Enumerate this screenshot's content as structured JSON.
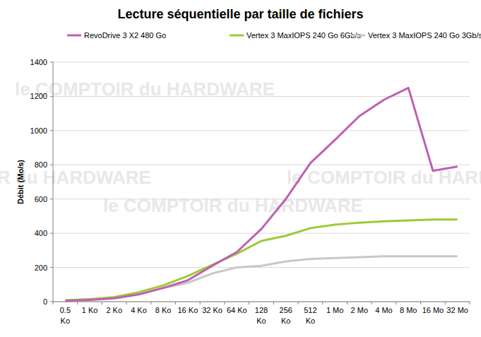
{
  "chart_data": {
    "type": "line",
    "title": "Lecture séquentielle par taille de fichiers",
    "y_label": "Débit (Mo/s)",
    "annotations": [
      "le COMPTOIR du HARDWARE"
    ],
    "categories": [
      "0.5 Ko",
      "1 Ko",
      "2 Ko",
      "4 Ko",
      "8 Ko",
      "16 Ko",
      "32 Ko",
      "64 Ko",
      "128 Ko",
      "256 Ko",
      "512 Ko",
      "1 Mo",
      "2 Mo",
      "4 Mo",
      "8 Mo",
      "16 Mo",
      "32 Mo"
    ],
    "series": [
      {
        "name": "RevoDrive 3 X2 480 Go",
        "color": "#bf5fb3",
        "values": [
          5,
          10,
          20,
          42,
          80,
          125,
          210,
          290,
          425,
          600,
          810,
          945,
          1085,
          1180,
          1250,
          765,
          790
        ]
      },
      {
        "name": "Vertex 3 MaxIOPS 240 Go 6Gb/s",
        "color": "#9ccb34",
        "values": [
          8,
          15,
          27,
          55,
          95,
          150,
          215,
          280,
          355,
          385,
          430,
          450,
          462,
          470,
          475,
          480,
          480
        ]
      },
      {
        "name": "Vertex 3 MaxIOPS 240 Go 3Gb/s",
        "color": "#c8c8c8",
        "values": [
          5,
          12,
          25,
          45,
          80,
          110,
          165,
          200,
          210,
          235,
          250,
          255,
          260,
          265,
          265,
          265,
          265
        ]
      }
    ],
    "ylim": [
      0,
      1400
    ],
    "yticks": [
      0,
      200,
      400,
      600,
      800,
      1000,
      1200,
      1400
    ],
    "grid": true,
    "legend": "top"
  }
}
